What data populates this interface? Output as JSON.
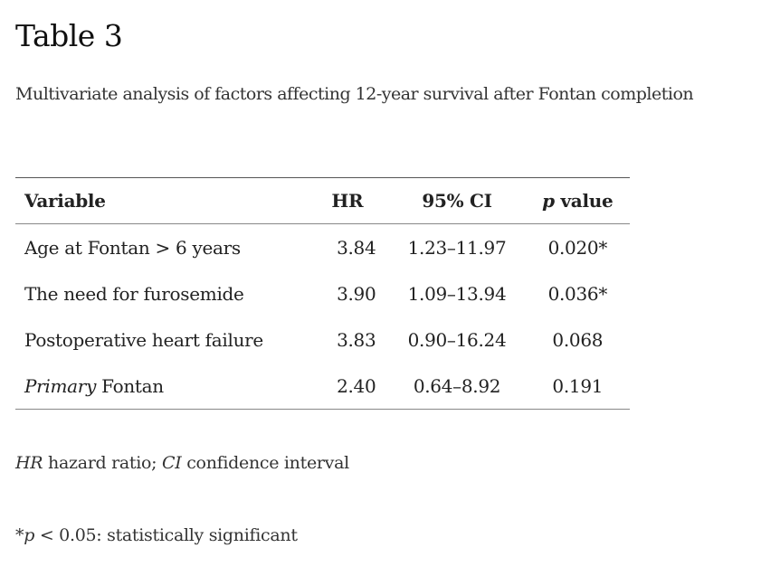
{
  "title": "Table 3",
  "caption": "Multivariate analysis of factors affecting 12-year survival after Fontan completion",
  "table": {
    "headers": {
      "variable": "Variable",
      "hr": "HR",
      "ci": "95% CI",
      "p_italic": "p",
      "p_rest": " value"
    },
    "rows": [
      {
        "variable_italic": "",
        "variable": "Age at Fontan > 6 years",
        "hr": "3.84",
        "ci": "1.23–11.97",
        "p": "0.020*"
      },
      {
        "variable_italic": "",
        "variable": "The need for furosemide",
        "hr": "3.90",
        "ci": "1.09–13.94",
        "p": "0.036*"
      },
      {
        "variable_italic": "",
        "variable": "Postoperative heart failure",
        "hr": "3.83",
        "ci": "0.90–16.24",
        "p": "0.068"
      },
      {
        "variable_italic": "Primary",
        "variable": " Fontan",
        "hr": "2.40",
        "ci": "0.64–8.92",
        "p": "0.191"
      }
    ]
  },
  "footnotes": {
    "abbrev_hr": "HR",
    "abbrev_hr_text": " hazard ratio; ",
    "abbrev_ci": "CI",
    "abbrev_ci_text": " confidence interval",
    "sig_star": "*",
    "sig_p": "p",
    "sig_text": " < 0.05: statistically significant"
  }
}
